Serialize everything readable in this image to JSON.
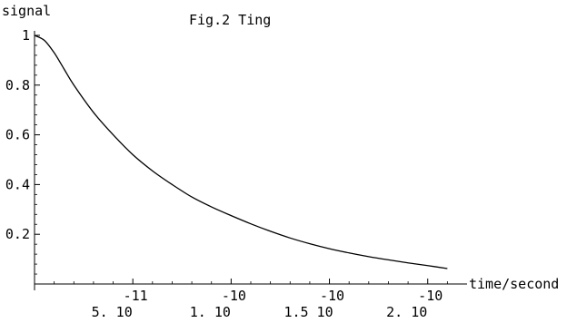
{
  "chart_data": {
    "type": "line",
    "title": "Fig.2 Ting",
    "xlabel": "time/second",
    "ylabel": "signal",
    "xlim": [
      0,
      2.2e-10
    ],
    "ylim": [
      0,
      1
    ],
    "grid": false,
    "x_ticks": [
      {
        "value": 5e-11,
        "mantissa": "5. 10",
        "exponent": "-11"
      },
      {
        "value": 1e-10,
        "mantissa": "1. 10",
        "exponent": "-10"
      },
      {
        "value": 1.5e-10,
        "mantissa": "1.5 10",
        "exponent": "-10"
      },
      {
        "value": 2e-10,
        "mantissa": "2. 10",
        "exponent": "-10"
      }
    ],
    "y_ticks": [
      {
        "value": 0.2,
        "label": "0.2"
      },
      {
        "value": 0.4,
        "label": "0.4"
      },
      {
        "value": 0.6,
        "label": "0.6"
      },
      {
        "value": 0.8,
        "label": "0.8"
      },
      {
        "value": 1,
        "label": "1"
      }
    ],
    "series": [
      {
        "x": [
          0,
          5e-12,
          1e-11,
          1.5e-11,
          2e-11,
          3e-11,
          4e-11,
          5e-11,
          6e-11,
          7e-11,
          8e-11,
          9e-11,
          1e-10,
          1.1e-10,
          1.2e-10,
          1.3e-10,
          1.4e-10,
          1.5e-10,
          1.6e-10,
          1.7e-10,
          1.8e-10,
          1.9e-10,
          2e-10,
          2.1e-10
        ],
        "y": [
          1.0,
          0.98,
          0.93,
          0.865,
          0.8,
          0.69,
          0.6,
          0.52,
          0.455,
          0.4,
          0.35,
          0.31,
          0.275,
          0.242,
          0.212,
          0.185,
          0.162,
          0.142,
          0.125,
          0.11,
          0.097,
          0.085,
          0.074,
          0.062
        ]
      }
    ]
  }
}
